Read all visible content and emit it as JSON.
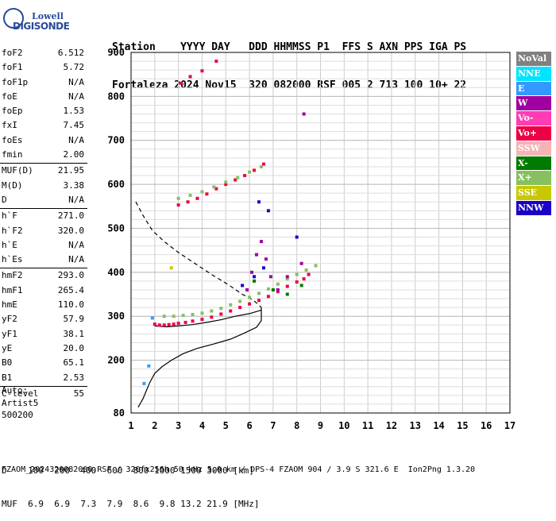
{
  "logo": {
    "line1": "Lowell",
    "line2": "DIGISONDE"
  },
  "header": {
    "line1": "Station    YYYY DAY   DDD HHMMSS P1  FFS S AXN PPS IGA PS",
    "line2": "Fortaleza 2024 Nov15  320 082000 RSF 005 2 713 100 10+ 22"
  },
  "params": [
    {
      "name": "foF2",
      "value": "6.512"
    },
    {
      "name": "foF1",
      "value": "5.72"
    },
    {
      "name": "foF1p",
      "value": "N/A"
    },
    {
      "name": "foE",
      "value": "N/A"
    },
    {
      "name": "foEp",
      "value": "1.53"
    },
    {
      "name": "fxI",
      "value": "7.45"
    },
    {
      "name": "foEs",
      "value": "N/A"
    },
    {
      "name": "fmin",
      "value": "2.00"
    },
    {
      "name": "MUF(D)",
      "value": "21.95",
      "sep": true
    },
    {
      "name": "M(D)",
      "value": "3.38"
    },
    {
      "name": "D",
      "value": "N/A"
    },
    {
      "name": "h`F",
      "value": "271.0",
      "sep": true
    },
    {
      "name": "h`F2",
      "value": "320.0"
    },
    {
      "name": "h`E",
      "value": "N/A"
    },
    {
      "name": "h`Es",
      "value": "N/A"
    },
    {
      "name": "hmF2",
      "value": "293.0",
      "sep": true
    },
    {
      "name": "hmF1",
      "value": "265.4"
    },
    {
      "name": "hmE",
      "value": "110.0"
    },
    {
      "name": "yF2",
      "value": "57.9"
    },
    {
      "name": "yF1",
      "value": "38.1"
    },
    {
      "name": "yE",
      "value": "20.0"
    },
    {
      "name": "B0",
      "value": "65.1"
    },
    {
      "name": "B1",
      "value": "2.53"
    },
    {
      "name": "C-level",
      "value": "55",
      "sep": true
    }
  ],
  "autoscale": {
    "line1": "Auto:",
    "line2": "Artist5",
    "line3": "500200"
  },
  "legend": [
    {
      "label": "NoVal",
      "bg": "#808080",
      "fg": "#ffffff"
    },
    {
      "label": "NNE",
      "bg": "#00e5ff",
      "fg": "#ffffff"
    },
    {
      "label": "E",
      "bg": "#3399ff",
      "fg": "#ffffff"
    },
    {
      "label": "W",
      "bg": "#a000a0",
      "fg": "#ffffff"
    },
    {
      "label": "Vo-",
      "bg": "#ff3cb4",
      "fg": "#ffffff"
    },
    {
      "label": "Vo+",
      "bg": "#ee0044",
      "fg": "#ffffff"
    },
    {
      "label": "SSW",
      "bg": "#f4b4b4",
      "fg": "#ffffff"
    },
    {
      "label": "X-",
      "bg": "#007a00",
      "fg": "#ffffff"
    },
    {
      "label": "X+",
      "bg": "#88c060",
      "fg": "#ffffff"
    },
    {
      "label": "SSE",
      "bg": "#c8c800",
      "fg": "#ffffff"
    },
    {
      "label": "NNW",
      "bg": "#1a00c8",
      "fg": "#ffffff"
    }
  ],
  "footer": {
    "line1": "D    100  200  400  600  800 1000 1500 3000 [km]",
    "line2": "MUF  6.9  6.9  7.3  7.9  8.6  9.8 13.2 21.9 [MHz]",
    "line3": "FZAOM_2024320082000.RSF / 320fx256h 50 kHz 5.0 km / DPS-4 FZAOM 904 / 3.9 S 321.6 E  Ion2Png 1.3.20"
  },
  "chart_data": {
    "type": "scatter",
    "xlim": [
      1,
      17
    ],
    "ylim": [
      80,
      900
    ],
    "xticks": [
      1,
      2,
      3,
      4,
      5,
      6,
      7,
      8,
      9,
      10,
      11,
      12,
      13,
      14,
      15,
      16,
      17
    ],
    "yticks": [
      80,
      200,
      300,
      400,
      500,
      600,
      700,
      800,
      900
    ],
    "grid": true,
    "series": [
      {
        "name": "Vo+",
        "color": "#ee0044",
        "points": [
          [
            2.0,
            282
          ],
          [
            2.2,
            280
          ],
          [
            2.4,
            280
          ],
          [
            2.6,
            281
          ],
          [
            2.8,
            282
          ],
          [
            3.0,
            284
          ],
          [
            3.3,
            286
          ],
          [
            3.6,
            289
          ],
          [
            4.0,
            293
          ],
          [
            4.4,
            298
          ],
          [
            4.8,
            305
          ],
          [
            5.2,
            312
          ],
          [
            5.6,
            320
          ],
          [
            6.0,
            328
          ],
          [
            6.4,
            336
          ],
          [
            6.8,
            345
          ],
          [
            7.2,
            356
          ],
          [
            7.6,
            368
          ],
          [
            8.0,
            378
          ],
          [
            8.3,
            385
          ],
          [
            8.5,
            395
          ],
          [
            3.0,
            553
          ],
          [
            3.4,
            560
          ],
          [
            3.8,
            568
          ],
          [
            4.2,
            578
          ],
          [
            4.6,
            590
          ],
          [
            5.0,
            600
          ],
          [
            5.4,
            610
          ],
          [
            5.8,
            620
          ],
          [
            6.2,
            632
          ],
          [
            6.6,
            646
          ],
          [
            3.1,
            830
          ],
          [
            3.5,
            845
          ],
          [
            4.0,
            858
          ],
          [
            4.6,
            880
          ]
        ]
      },
      {
        "name": "X+",
        "color": "#88c060",
        "points": [
          [
            2.4,
            300
          ],
          [
            2.8,
            300
          ],
          [
            3.2,
            302
          ],
          [
            3.6,
            304
          ],
          [
            4.0,
            307
          ],
          [
            4.4,
            312
          ],
          [
            4.8,
            318
          ],
          [
            5.2,
            326
          ],
          [
            5.6,
            334
          ],
          [
            6.0,
            343
          ],
          [
            6.4,
            352
          ],
          [
            6.8,
            362
          ],
          [
            7.2,
            373
          ],
          [
            7.6,
            385
          ],
          [
            8.0,
            395
          ],
          [
            8.4,
            405
          ],
          [
            8.8,
            415
          ],
          [
            3.0,
            568
          ],
          [
            3.5,
            575
          ],
          [
            4.0,
            583
          ],
          [
            4.5,
            594
          ],
          [
            5.0,
            605
          ],
          [
            5.5,
            615
          ],
          [
            6.0,
            628
          ],
          [
            6.5,
            640
          ]
        ]
      },
      {
        "name": "W",
        "color": "#a000a0",
        "points": [
          [
            5.9,
            360
          ],
          [
            6.1,
            400
          ],
          [
            6.3,
            440
          ],
          [
            6.5,
            470
          ],
          [
            6.7,
            430
          ],
          [
            6.9,
            390
          ],
          [
            7.2,
            360
          ],
          [
            7.6,
            390
          ],
          [
            8.2,
            420
          ],
          [
            8.3,
            760
          ]
        ]
      },
      {
        "name": "NNW",
        "color": "#1a00c8",
        "points": [
          [
            5.7,
            370
          ],
          [
            6.2,
            390
          ],
          [
            6.4,
            560
          ],
          [
            6.6,
            410
          ],
          [
            6.8,
            540
          ],
          [
            8.0,
            480
          ]
        ]
      },
      {
        "name": "X-",
        "color": "#007a00",
        "points": [
          [
            6.2,
            380
          ],
          [
            7.0,
            360
          ],
          [
            7.6,
            350
          ],
          [
            8.2,
            370
          ]
        ]
      },
      {
        "name": "E",
        "color": "#3399ff",
        "points": [
          [
            1.9,
            296
          ],
          [
            1.75,
            187
          ],
          [
            1.55,
            147
          ]
        ]
      },
      {
        "name": "SSE",
        "color": "#c8c800",
        "points": [
          [
            2.7,
            410
          ]
        ]
      }
    ],
    "profile_solid": [
      [
        1.3,
        93
      ],
      [
        1.5,
        112
      ],
      [
        1.6,
        125
      ],
      [
        1.8,
        150
      ],
      [
        2.0,
        170
      ],
      [
        2.3,
        185
      ],
      [
        2.7,
        200
      ],
      [
        3.2,
        215
      ],
      [
        3.8,
        227
      ],
      [
        4.5,
        237
      ],
      [
        5.2,
        248
      ],
      [
        5.8,
        262
      ],
      [
        6.3,
        275
      ],
      [
        6.5,
        290
      ],
      [
        6.5,
        320
      ]
    ],
    "profile_dashed": [
      [
        1.2,
        560
      ],
      [
        1.5,
        530
      ],
      [
        1.9,
        495
      ],
      [
        2.4,
        470
      ],
      [
        3.0,
        445
      ],
      [
        3.7,
        420
      ],
      [
        4.4,
        395
      ],
      [
        5.1,
        372
      ],
      [
        5.7,
        350
      ],
      [
        6.2,
        335
      ],
      [
        6.5,
        320
      ]
    ],
    "trace_line": [
      [
        2.0,
        278
      ],
      [
        2.5,
        276
      ],
      [
        3.0,
        278
      ],
      [
        3.6,
        281
      ],
      [
        4.2,
        286
      ],
      [
        4.8,
        292
      ],
      [
        5.4,
        300
      ],
      [
        6.0,
        306
      ],
      [
        6.5,
        314
      ]
    ]
  }
}
